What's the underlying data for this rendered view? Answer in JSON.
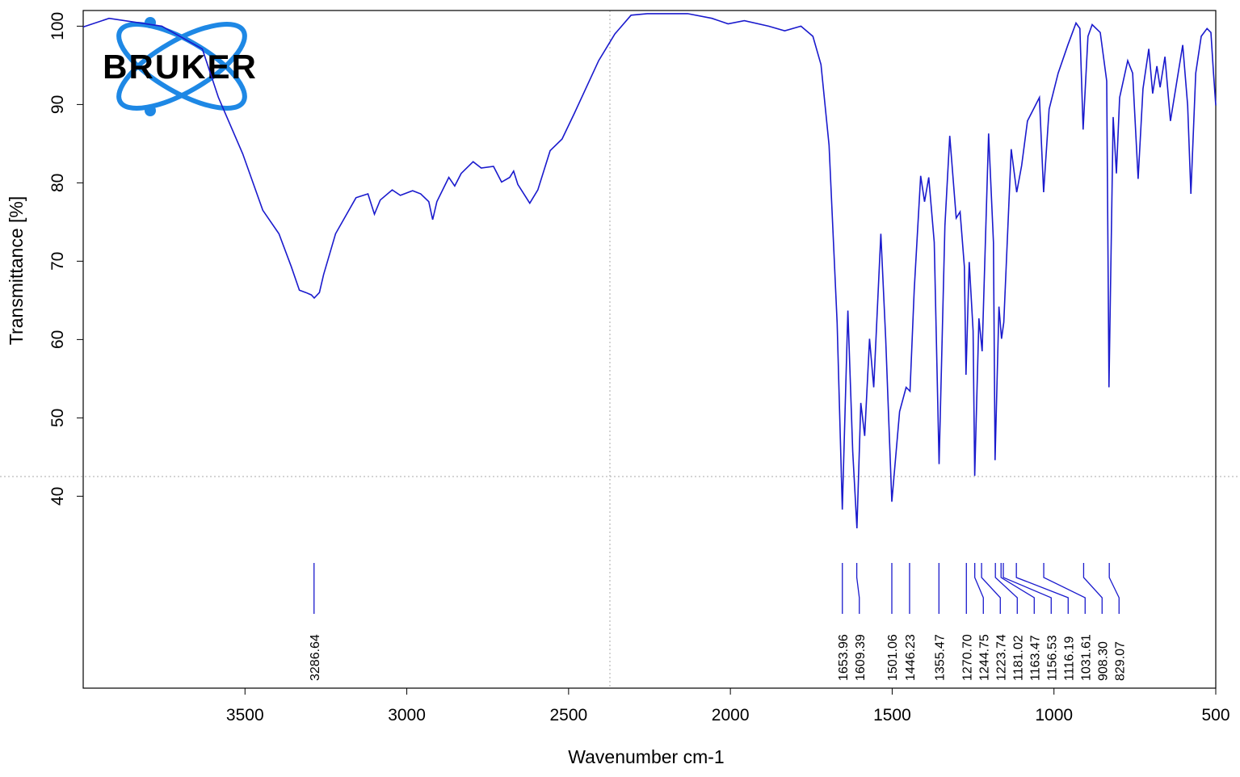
{
  "chart_data": {
    "type": "line",
    "logo": "BRUKER",
    "xlabel": "Wavenumber cm-1",
    "ylabel": "Transmittance [%]",
    "color": "#1a1acd",
    "xlim": [
      4000,
      500
    ],
    "ylim": [
      15.5,
      102
    ],
    "xticks": [
      3500,
      3000,
      2500,
      2000,
      1500,
      1000,
      500
    ],
    "yticks": [
      40,
      50,
      60,
      70,
      80,
      90,
      100
    ],
    "x": [
      4000,
      3920,
      3757,
      3632,
      3582,
      3507,
      3445,
      3395,
      3357,
      3332,
      3312,
      3295,
      3286,
      3270,
      3257,
      3220,
      3157,
      3120,
      3100,
      3082,
      3045,
      3020,
      2982,
      2957,
      2932,
      2920,
      2907,
      2870,
      2852,
      2832,
      2795,
      2770,
      2732,
      2707,
      2682,
      2670,
      2657,
      2620,
      2595,
      2557,
      2520,
      2482,
      2407,
      2357,
      2307,
      2257,
      2132,
      2057,
      2007,
      1957,
      1882,
      1832,
      1782,
      1745,
      1720,
      1695,
      1670,
      1654,
      1637,
      1622,
      1609,
      1597,
      1585,
      1570,
      1557,
      1535,
      1520,
      1501,
      1477,
      1457,
      1445,
      1432,
      1412,
      1400,
      1387,
      1370,
      1355,
      1337,
      1322,
      1302,
      1290,
      1277,
      1272,
      1262,
      1250,
      1245,
      1232,
      1222,
      1202,
      1187,
      1182,
      1170,
      1162,
      1155,
      1132,
      1115,
      1100,
      1082,
      1045,
      1032,
      1015,
      987,
      957,
      932,
      920,
      910,
      895,
      882,
      857,
      837,
      830,
      817,
      807,
      797,
      772,
      757,
      740,
      725,
      707,
      695,
      682,
      672,
      657,
      640,
      620,
      602,
      587,
      577,
      562,
      545,
      527,
      515,
      507,
      500
    ],
    "values": [
      99.9,
      101.0,
      100.0,
      97.1,
      90.9,
      83.7,
      76.5,
      73.5,
      69.3,
      66.3,
      66.0,
      65.7,
      65.3,
      66.0,
      68.3,
      73.5,
      78.1,
      78.6,
      76.0,
      77.8,
      79.1,
      78.4,
      79.0,
      78.6,
      77.6,
      75.3,
      77.6,
      80.7,
      79.6,
      81.2,
      82.7,
      81.9,
      82.1,
      80.1,
      80.7,
      81.5,
      79.8,
      77.4,
      79.1,
      84.1,
      85.6,
      88.9,
      95.6,
      99.0,
      101.4,
      101.6,
      101.6,
      101.0,
      100.3,
      100.7,
      100.0,
      99.4,
      100.0,
      98.7,
      95.1,
      84.8,
      62.1,
      38.3,
      63.7,
      45.7,
      35.9,
      51.9,
      47.7,
      60.1,
      53.9,
      73.5,
      60.1,
      39.3,
      50.8,
      53.9,
      53.4,
      66.3,
      80.9,
      77.6,
      80.7,
      72.4,
      44.1,
      74.5,
      86.0,
      75.5,
      76.3,
      69.3,
      55.5,
      69.9,
      61.1,
      42.6,
      62.7,
      58.5,
      86.3,
      72.4,
      44.6,
      64.2,
      60.1,
      62.2,
      84.3,
      78.8,
      82.2,
      87.9,
      90.9,
      78.8,
      89.4,
      94.0,
      97.6,
      100.4,
      99.7,
      86.8,
      98.7,
      100.2,
      99.2,
      93.0,
      53.9,
      88.4,
      81.2,
      90.9,
      95.6,
      94.0,
      80.5,
      92.0,
      97.1,
      91.4,
      94.9,
      92.2,
      96.1,
      87.9,
      93.0,
      97.6,
      89.9,
      78.6,
      94.0,
      98.7,
      99.7,
      99.2,
      94.0,
      89.9
    ],
    "peaks": [
      {
        "value": 3286.64,
        "label": "3286.64"
      },
      {
        "value": 1653.96,
        "label": "1653.96"
      },
      {
        "value": 1609.39,
        "label": "1609.39"
      },
      {
        "value": 1501.06,
        "label": "1501.06"
      },
      {
        "value": 1446.23,
        "label": "1446.23"
      },
      {
        "value": 1355.47,
        "label": "1355.47"
      },
      {
        "value": 1270.7,
        "label": "1270.70"
      },
      {
        "value": 1244.75,
        "label": "1244.75"
      },
      {
        "value": 1223.74,
        "label": "1223.74"
      },
      {
        "value": 1181.02,
        "label": "1181.02"
      },
      {
        "value": 1163.47,
        "label": "1163.47"
      },
      {
        "value": 1156.53,
        "label": "1156.53"
      },
      {
        "value": 1116.19,
        "label": "1116.19"
      },
      {
        "value": 1031.61,
        "label": "1031.61"
      },
      {
        "value": 908.3,
        "label": "908.30"
      },
      {
        "value": 829.07,
        "label": "829.07"
      }
    ]
  }
}
